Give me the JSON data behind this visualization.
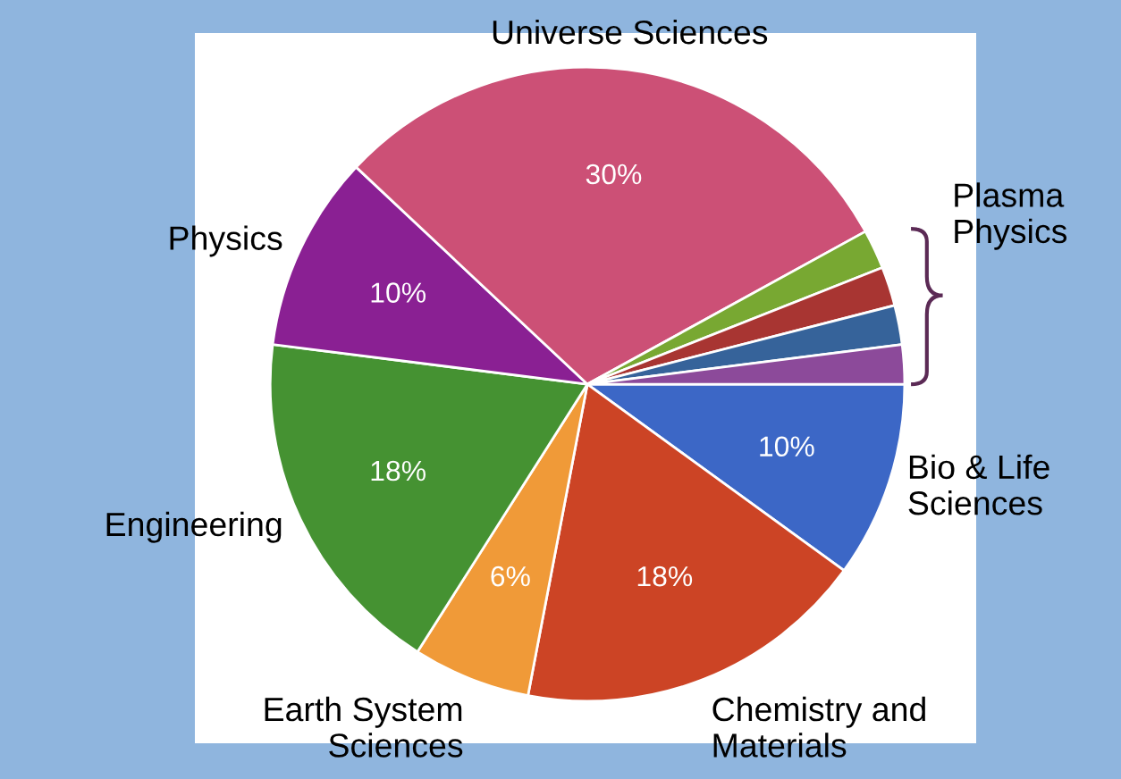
{
  "chart_data": {
    "type": "pie",
    "categories": [
      "Bio & Life\nSciences",
      "Chemistry and\nMaterials",
      "Earth System\nSciences",
      "Engineering",
      "Physics",
      "Universe Sciences",
      null,
      null,
      null,
      null
    ],
    "values": [
      10,
      18,
      6,
      18,
      10,
      30,
      2,
      2,
      2,
      2
    ],
    "colors": [
      "#3c67c6",
      "#cc4425",
      "#f09a38",
      "#459232",
      "#8a2093",
      "#cc5076",
      "#78a832",
      "#a83532",
      "#36639a",
      "#8c4a9a"
    ],
    "value_labels": [
      "10%",
      "18%",
      "6%",
      "18%",
      "10%",
      "30%",
      null,
      null,
      null,
      null
    ],
    "annotations": [
      "Plasma\nPhysics"
    ]
  }
}
